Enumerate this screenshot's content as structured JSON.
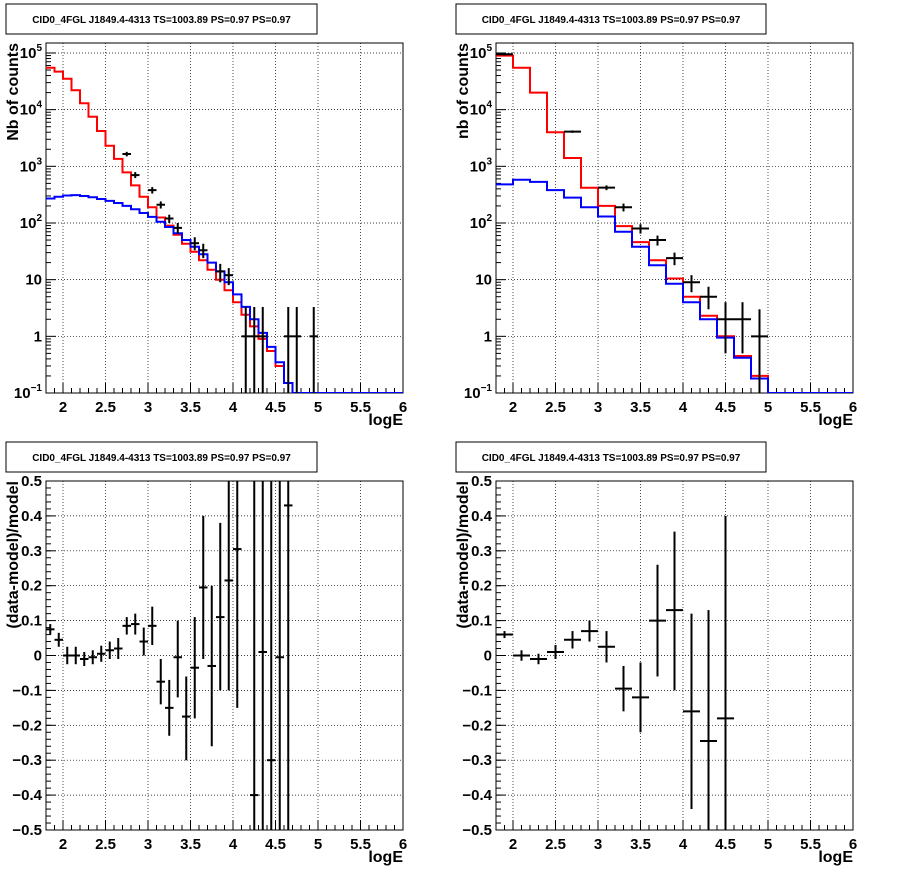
{
  "chart_data": [
    {
      "type": "line",
      "title": "CID0_4FGL J1849.4-4313 TS=1003.89 PS=0.97 PS=0.97",
      "xlabel": "logE",
      "ylabel": "Nb of counts",
      "xlim": [
        1.8,
        6.0
      ],
      "ylim": [
        0.1,
        150000
      ],
      "yscale": "log",
      "grid": true,
      "xticks": [
        "2",
        "2.5",
        "3",
        "3.5",
        "4",
        "4.5",
        "5",
        "5.5",
        "6"
      ],
      "yticks": [
        {
          "v": 0.1,
          "label": "10",
          "exp": "−1"
        },
        {
          "v": 1,
          "label": "1",
          "exp": ""
        },
        {
          "v": 10,
          "label": "10",
          "exp": ""
        },
        {
          "v": 100,
          "label": "10",
          "exp": "2"
        },
        {
          "v": 1000,
          "label": "10",
          "exp": "3"
        },
        {
          "v": 10000,
          "label": "10",
          "exp": "4"
        },
        {
          "v": 100000,
          "label": "10",
          "exp": "5"
        }
      ],
      "bin_width": 0.1,
      "bin_start": 1.8,
      "series": [
        {
          "color": "#ff0000",
          "values": [
            55000,
            47000,
            35000,
            22000,
            13000,
            7500,
            4200,
            2300,
            1350,
            780,
            460,
            290,
            190,
            125,
            90,
            62,
            43,
            31,
            22,
            15,
            10,
            6.5,
            4.0,
            2.4,
            1.5,
            0.9,
            0.55,
            0.3,
            0.15,
            0.1,
            0.1,
            0.1,
            0.1,
            0.1,
            0.1,
            0.1,
            0.1,
            0.1,
            0.1,
            0.1,
            0.1,
            0.1
          ]
        },
        {
          "color": "#0000ff",
          "values": [
            270,
            290,
            305,
            310,
            300,
            285,
            265,
            245,
            225,
            200,
            175,
            150,
            128,
            105,
            85,
            66,
            50,
            38,
            28,
            20,
            14,
            9.0,
            5.5,
            3.3,
            2.0,
            1.15,
            0.65,
            0.35,
            0.15,
            0.1,
            0.1,
            0.1,
            0.1,
            0.1,
            0.1,
            0.1,
            0.1,
            0.1,
            0.1,
            0.1,
            0.1,
            0.1
          ]
        }
      ],
      "points": [
        {
          "x": 2.75,
          "y": 1650,
          "xe": 0.05,
          "ylo": 1500,
          "yhi": 1800
        },
        {
          "x": 2.85,
          "y": 700,
          "xe": 0.05,
          "ylo": 620,
          "yhi": 790
        },
        {
          "x": 3.05,
          "y": 380,
          "xe": 0.05,
          "ylo": 330,
          "yhi": 430
        },
        {
          "x": 3.15,
          "y": 210,
          "xe": 0.05,
          "ylo": 180,
          "yhi": 240
        },
        {
          "x": 3.25,
          "y": 120,
          "xe": 0.05,
          "ylo": 100,
          "yhi": 140
        },
        {
          "x": 3.35,
          "y": 82,
          "xe": 0.05,
          "ylo": 65,
          "yhi": 100
        },
        {
          "x": 3.55,
          "y": 44,
          "xe": 0.05,
          "ylo": 33,
          "yhi": 56
        },
        {
          "x": 3.65,
          "y": 33,
          "xe": 0.05,
          "ylo": 24,
          "yhi": 43
        },
        {
          "x": 3.85,
          "y": 14,
          "xe": 0.05,
          "ylo": 9,
          "yhi": 19
        },
        {
          "x": 3.95,
          "y": 12,
          "xe": 0.05,
          "ylo": 8,
          "yhi": 16
        },
        {
          "x": 4.15,
          "y": 1,
          "xe": 0.05,
          "ylo": 0.1,
          "yhi": 3.3
        },
        {
          "x": 4.25,
          "y": 1,
          "xe": 0.05,
          "ylo": 0.1,
          "yhi": 3.3
        },
        {
          "x": 4.35,
          "y": 1,
          "xe": 0.05,
          "ylo": 0.1,
          "yhi": 3.3
        },
        {
          "x": 4.65,
          "y": 1,
          "xe": 0.05,
          "ylo": 0.1,
          "yhi": 3.3
        },
        {
          "x": 4.75,
          "y": 1,
          "xe": 0.05,
          "ylo": 0.1,
          "yhi": 3.3
        },
        {
          "x": 4.95,
          "y": 1,
          "xe": 0.05,
          "ylo": 0.1,
          "yhi": 3.3
        }
      ]
    },
    {
      "type": "line",
      "title": "CID0_4FGL J1849.4-4313 TS=1003.89 PS=0.97 PS=0.97",
      "xlabel": "logE",
      "ylabel": "nb of counts",
      "xlim": [
        1.8,
        6.0
      ],
      "ylim": [
        0.1,
        150000
      ],
      "yscale": "log",
      "grid": true,
      "xticks": [
        "2",
        "2.5",
        "3",
        "3.5",
        "4",
        "4.5",
        "5",
        "5.5",
        "6"
      ],
      "yticks": [
        {
          "v": 0.1,
          "label": "10",
          "exp": "−1"
        },
        {
          "v": 1,
          "label": "1",
          "exp": ""
        },
        {
          "v": 10,
          "label": "10",
          "exp": ""
        },
        {
          "v": 100,
          "label": "10",
          "exp": "2"
        },
        {
          "v": 1000,
          "label": "10",
          "exp": "3"
        },
        {
          "v": 10000,
          "label": "10",
          "exp": "4"
        },
        {
          "v": 100000,
          "label": "10",
          "exp": "5"
        }
      ],
      "bin_width": 0.2,
      "bin_start": 1.8,
      "series": [
        {
          "color": "#ff0000",
          "values": [
            90000,
            55000,
            20000,
            4000,
            1400,
            420,
            200,
            88,
            46,
            22,
            10.5,
            5.0,
            2.3,
            1.0,
            0.45,
            0.2,
            0.1,
            0.1,
            0.1,
            0.1,
            0.1
          ]
        },
        {
          "color": "#0000ff",
          "values": [
            480,
            580,
            530,
            380,
            280,
            190,
            130,
            70,
            38,
            18,
            8.5,
            4.0,
            2.0,
            0.95,
            0.42,
            0.18,
            0.1,
            0.1,
            0.1,
            0.1,
            0.1
          ]
        }
      ],
      "points": [
        {
          "x": 1.9,
          "y": 95000,
          "xe": 0.1,
          "ylo": 90000,
          "yhi": 100000
        },
        {
          "x": 2.7,
          "y": 4100,
          "xe": 0.1,
          "ylo": 3900,
          "yhi": 4300
        },
        {
          "x": 3.1,
          "y": 420,
          "xe": 0.1,
          "ylo": 380,
          "yhi": 460
        },
        {
          "x": 3.3,
          "y": 190,
          "xe": 0.1,
          "ylo": 160,
          "yhi": 220
        },
        {
          "x": 3.5,
          "y": 80,
          "xe": 0.1,
          "ylo": 65,
          "yhi": 95
        },
        {
          "x": 3.7,
          "y": 50,
          "xe": 0.1,
          "ylo": 40,
          "yhi": 60
        },
        {
          "x": 3.9,
          "y": 24,
          "xe": 0.1,
          "ylo": 18,
          "yhi": 30
        },
        {
          "x": 4.1,
          "y": 9,
          "xe": 0.1,
          "ylo": 6,
          "yhi": 12
        },
        {
          "x": 4.3,
          "y": 5,
          "xe": 0.1,
          "ylo": 3,
          "yhi": 7.5
        },
        {
          "x": 4.5,
          "y": 2,
          "xe": 0.1,
          "ylo": 0.5,
          "yhi": 4
        },
        {
          "x": 4.7,
          "y": 2,
          "xe": 0.1,
          "ylo": 0.5,
          "yhi": 4
        },
        {
          "x": 4.9,
          "y": 1,
          "xe": 0.1,
          "ylo": 0.1,
          "yhi": 3
        }
      ]
    },
    {
      "type": "scatter",
      "title": "CID0_4FGL J1849.4-4313 TS=1003.89 PS=0.97 PS=0.97",
      "xlabel": "logE",
      "ylabel": "(data-model)/model",
      "xlim": [
        1.8,
        6.0
      ],
      "ylim": [
        -0.5,
        0.5
      ],
      "yscale": "linear",
      "grid": true,
      "xticks": [
        "2",
        "2.5",
        "3",
        "3.5",
        "4",
        "4.5",
        "5",
        "5.5",
        "6"
      ],
      "yticks": [
        {
          "v": -0.5,
          "label": "−0.5",
          "exp": ""
        },
        {
          "v": -0.4,
          "label": "−0.4",
          "exp": ""
        },
        {
          "v": -0.3,
          "label": "−0.3",
          "exp": ""
        },
        {
          "v": -0.2,
          "label": "−0.2",
          "exp": ""
        },
        {
          "v": -0.1,
          "label": "−0.1",
          "exp": ""
        },
        {
          "v": 0,
          "label": "0",
          "exp": ""
        },
        {
          "v": 0.1,
          "label": "0.1",
          "exp": ""
        },
        {
          "v": 0.2,
          "label": "0.2",
          "exp": ""
        },
        {
          "v": 0.3,
          "label": "0.3",
          "exp": ""
        },
        {
          "v": 0.4,
          "label": "0.4",
          "exp": ""
        },
        {
          "v": 0.5,
          "label": "0.5",
          "exp": ""
        }
      ],
      "points": [
        {
          "x": 1.85,
          "y": 0.075,
          "xe": 0.05,
          "ylo": 0.06,
          "yhi": 0.09
        },
        {
          "x": 1.95,
          "y": 0.045,
          "xe": 0.05,
          "ylo": 0.025,
          "yhi": 0.065
        },
        {
          "x": 2.05,
          "y": 0.0,
          "xe": 0.05,
          "ylo": -0.025,
          "yhi": 0.025
        },
        {
          "x": 2.15,
          "y": 0.0,
          "xe": 0.05,
          "ylo": -0.025,
          "yhi": 0.025
        },
        {
          "x": 2.25,
          "y": -0.01,
          "xe": 0.05,
          "ylo": -0.03,
          "yhi": 0.01
        },
        {
          "x": 2.35,
          "y": -0.005,
          "xe": 0.05,
          "ylo": -0.025,
          "yhi": 0.015
        },
        {
          "x": 2.45,
          "y": 0.005,
          "xe": 0.05,
          "ylo": -0.018,
          "yhi": 0.028
        },
        {
          "x": 2.55,
          "y": 0.015,
          "xe": 0.05,
          "ylo": -0.01,
          "yhi": 0.04
        },
        {
          "x": 2.65,
          "y": 0.02,
          "xe": 0.05,
          "ylo": -0.01,
          "yhi": 0.05
        },
        {
          "x": 2.75,
          "y": 0.085,
          "xe": 0.05,
          "ylo": 0.06,
          "yhi": 0.11
        },
        {
          "x": 2.85,
          "y": 0.09,
          "xe": 0.05,
          "ylo": 0.06,
          "yhi": 0.12
        },
        {
          "x": 2.95,
          "y": 0.04,
          "xe": 0.05,
          "ylo": 0.0,
          "yhi": 0.08
        },
        {
          "x": 3.05,
          "y": 0.085,
          "xe": 0.05,
          "ylo": 0.03,
          "yhi": 0.14
        },
        {
          "x": 3.15,
          "y": -0.075,
          "xe": 0.05,
          "ylo": -0.14,
          "yhi": -0.01
        },
        {
          "x": 3.25,
          "y": -0.15,
          "xe": 0.05,
          "ylo": -0.23,
          "yhi": -0.07
        },
        {
          "x": 3.35,
          "y": -0.005,
          "xe": 0.05,
          "ylo": -0.12,
          "yhi": 0.1
        },
        {
          "x": 3.45,
          "y": -0.175,
          "xe": 0.05,
          "ylo": -0.3,
          "yhi": -0.06
        },
        {
          "x": 3.55,
          "y": -0.035,
          "xe": 0.05,
          "ylo": -0.18,
          "yhi": 0.11
        },
        {
          "x": 3.65,
          "y": 0.195,
          "xe": 0.05,
          "ylo": -0.01,
          "yhi": 0.4
        },
        {
          "x": 3.75,
          "y": -0.03,
          "xe": 0.05,
          "ylo": -0.26,
          "yhi": 0.2
        },
        {
          "x": 3.85,
          "y": 0.11,
          "xe": 0.05,
          "ylo": -0.1,
          "yhi": 0.38
        },
        {
          "x": 3.95,
          "y": 0.215,
          "xe": 0.05,
          "ylo": -0.1,
          "yhi": 0.52
        },
        {
          "x": 4.05,
          "y": 0.305,
          "xe": 0.05,
          "ylo": -0.15,
          "yhi": 0.52
        },
        {
          "x": 4.25,
          "y": -0.4,
          "xe": 0.05,
          "ylo": -0.52,
          "yhi": 0.52
        },
        {
          "x": 4.35,
          "y": 0.01,
          "xe": 0.05,
          "ylo": -0.52,
          "yhi": 0.52
        },
        {
          "x": 4.45,
          "y": -0.3,
          "xe": 0.05,
          "ylo": -0.52,
          "yhi": 0.52
        },
        {
          "x": 4.55,
          "y": -0.005,
          "xe": 0.05,
          "ylo": -0.52,
          "yhi": 0.52
        },
        {
          "x": 4.65,
          "y": 0.43,
          "xe": 0.05,
          "ylo": -0.52,
          "yhi": 0.52
        }
      ]
    },
    {
      "type": "scatter",
      "title": "CID0_4FGL J1849.4-4313 TS=1003.89 PS=0.97 PS=0.97",
      "xlabel": "logE",
      "ylabel": "(data-model)/model",
      "xlim": [
        1.8,
        6.0
      ],
      "ylim": [
        -0.5,
        0.5
      ],
      "yscale": "linear",
      "grid": true,
      "xticks": [
        "2",
        "2.5",
        "3",
        "3.5",
        "4",
        "4.5",
        "5",
        "5.5",
        "6"
      ],
      "yticks": [
        {
          "v": -0.5,
          "label": "−0.5",
          "exp": ""
        },
        {
          "v": -0.4,
          "label": "−0.4",
          "exp": ""
        },
        {
          "v": -0.3,
          "label": "−0.3",
          "exp": ""
        },
        {
          "v": -0.2,
          "label": "−0.2",
          "exp": ""
        },
        {
          "v": -0.1,
          "label": "−0.1",
          "exp": ""
        },
        {
          "v": 0,
          "label": "0",
          "exp": ""
        },
        {
          "v": 0.1,
          "label": "0.1",
          "exp": ""
        },
        {
          "v": 0.2,
          "label": "0.2",
          "exp": ""
        },
        {
          "v": 0.3,
          "label": "0.3",
          "exp": ""
        },
        {
          "v": 0.4,
          "label": "0.4",
          "exp": ""
        },
        {
          "v": 0.5,
          "label": "0.5",
          "exp": ""
        }
      ],
      "points": [
        {
          "x": 1.9,
          "y": 0.06,
          "xe": 0.1,
          "ylo": 0.05,
          "yhi": 0.07
        },
        {
          "x": 2.1,
          "y": 0.0,
          "xe": 0.1,
          "ylo": -0.015,
          "yhi": 0.015
        },
        {
          "x": 2.3,
          "y": -0.01,
          "xe": 0.1,
          "ylo": -0.025,
          "yhi": 0.005
        },
        {
          "x": 2.5,
          "y": 0.01,
          "xe": 0.1,
          "ylo": -0.01,
          "yhi": 0.03
        },
        {
          "x": 2.7,
          "y": 0.045,
          "xe": 0.1,
          "ylo": 0.02,
          "yhi": 0.07
        },
        {
          "x": 2.9,
          "y": 0.07,
          "xe": 0.1,
          "ylo": 0.04,
          "yhi": 0.1
        },
        {
          "x": 3.1,
          "y": 0.025,
          "xe": 0.1,
          "ylo": -0.02,
          "yhi": 0.07
        },
        {
          "x": 3.3,
          "y": -0.095,
          "xe": 0.1,
          "ylo": -0.16,
          "yhi": -0.03
        },
        {
          "x": 3.5,
          "y": -0.12,
          "xe": 0.1,
          "ylo": -0.22,
          "yhi": -0.02
        },
        {
          "x": 3.7,
          "y": 0.1,
          "xe": 0.1,
          "ylo": -0.06,
          "yhi": 0.26
        },
        {
          "x": 3.9,
          "y": 0.13,
          "xe": 0.1,
          "ylo": -0.1,
          "yhi": 0.355
        },
        {
          "x": 4.1,
          "y": -0.16,
          "xe": 0.1,
          "ylo": -0.44,
          "yhi": 0.12
        },
        {
          "x": 4.3,
          "y": -0.245,
          "xe": 0.1,
          "ylo": -0.52,
          "yhi": 0.13
        },
        {
          "x": 4.5,
          "y": -0.18,
          "xe": 0.1,
          "ylo": -0.52,
          "yhi": 0.4
        }
      ]
    }
  ]
}
